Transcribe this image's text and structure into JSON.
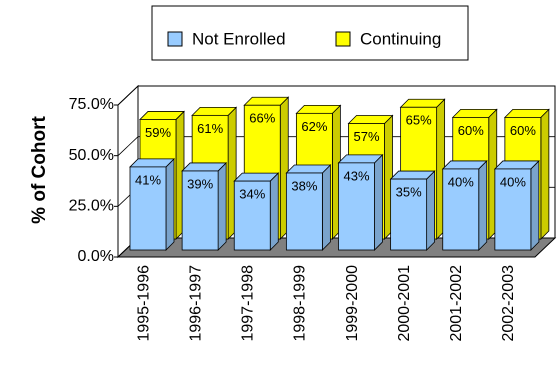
{
  "chart_data": {
    "type": "bar3d",
    "y_label": "% of Cohort",
    "categories": [
      "1995-1996",
      "1996-1997",
      "1997-1998",
      "1998-1999",
      "1999-2000",
      "2000-2001",
      "2001-2002",
      "2002-2003"
    ],
    "series": [
      {
        "name": "Not Enrolled",
        "color": "#99ccff",
        "values": [
          41,
          39,
          34,
          38,
          43,
          35,
          40,
          40
        ],
        "value_labels": [
          "41%",
          "39%",
          "34%",
          "38%",
          "43%",
          "35%",
          "40%",
          "40%"
        ]
      },
      {
        "name": "Continuing",
        "color": "#ffff00",
        "values": [
          59,
          61,
          66,
          62,
          57,
          65,
          60,
          60
        ],
        "value_labels": [
          "59%",
          "61%",
          "66%",
          "62%",
          "57%",
          "65%",
          "60%",
          "60%"
        ]
      }
    ],
    "ylim": [
      0,
      75
    ],
    "yticks": [
      {
        "value": 0,
        "label": "0.0%"
      },
      {
        "value": 25,
        "label": "25.0%"
      },
      {
        "value": 50,
        "label": "50.0%"
      },
      {
        "value": 75,
        "label": "75.0%"
      }
    ],
    "grid": true
  }
}
